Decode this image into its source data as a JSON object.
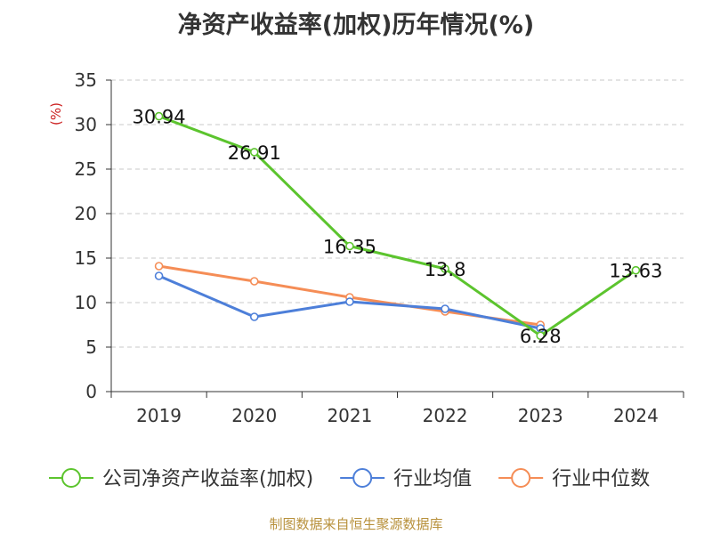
{
  "chart_data": {
    "type": "line",
    "title": "净资产收益率(加权)历年情况(%)",
    "ylabel": "(%)",
    "xlabel": "",
    "categories": [
      "2019",
      "2020",
      "2021",
      "2022",
      "2023",
      "2024"
    ],
    "ylim": [
      0,
      35
    ],
    "yticks": [
      0,
      5,
      10,
      15,
      20,
      25,
      30,
      35
    ],
    "grid": true,
    "legend": "bottom",
    "series": [
      {
        "name": "公司净资产收益率(加权)",
        "color": "#5cc42e",
        "values": [
          30.94,
          26.91,
          16.35,
          13.8,
          6.28,
          13.63
        ],
        "labels": [
          "30.94",
          "26.91",
          "16.35",
          "13.8",
          "6.28",
          "13.63"
        ]
      },
      {
        "name": "行业均值",
        "color": "#4d7fd9",
        "values": [
          13.0,
          8.4,
          10.1,
          9.3,
          7.1,
          null
        ]
      },
      {
        "name": "行业中位数",
        "color": "#f58d56",
        "values": [
          14.1,
          12.4,
          10.6,
          9.0,
          7.5,
          null
        ]
      }
    ]
  },
  "source": "制图数据来自恒生聚源数据库"
}
